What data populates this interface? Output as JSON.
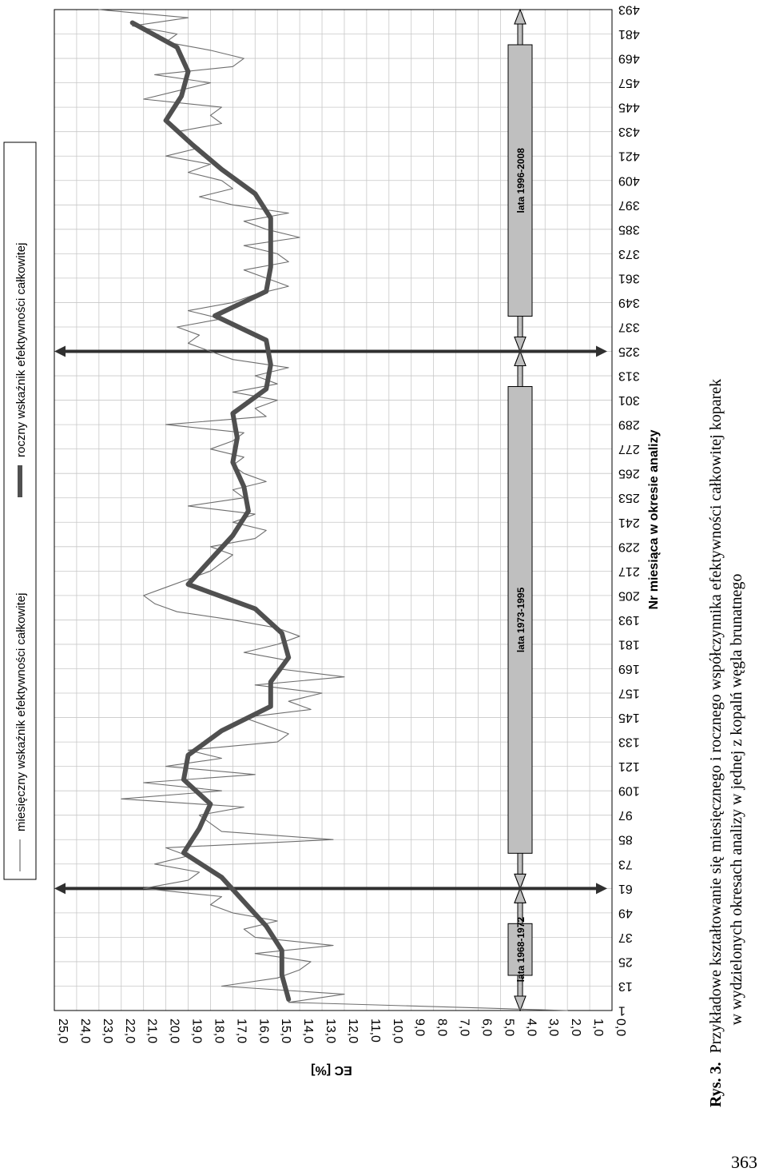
{
  "page_number": "363",
  "caption": {
    "prefix": "Rys. 3.",
    "line1": "Przykładowe kształtowanie się miesięcznego i rocznego współczynnika efektywności całkowitej koparek",
    "line2": "w wydzielonych okresach analizy w jednej z kopalń węgla brunatnego"
  },
  "colors": {
    "monthly": "#6e6e6e",
    "annual": "#505050",
    "period_box": "#bfbfbf",
    "grid": "#c8c8c8",
    "divider": "#303030"
  },
  "chart_data": {
    "type": "line",
    "orientation": "rotated-90-clockwise",
    "title": "",
    "xlabel": "Nr miesiąca w okresie analizy",
    "ylabel": "EC [%]",
    "xlim": [
      1,
      493
    ],
    "ylim": [
      0,
      25
    ],
    "grid": true,
    "legend_position": "top",
    "x_ticks": [
      "1",
      "13",
      "25",
      "37",
      "49",
      "61",
      "73",
      "85",
      "97",
      "109",
      "121",
      "133",
      "145",
      "157",
      "169",
      "181",
      "193",
      "205",
      "217",
      "229",
      "241",
      "253",
      "265",
      "277",
      "289",
      "301",
      "313",
      "325",
      "337",
      "349",
      "361",
      "373",
      "385",
      "397",
      "409",
      "421",
      "433",
      "445",
      "457",
      "469",
      "481",
      "493"
    ],
    "y_ticks": [
      "0,0",
      "1,0",
      "2,0",
      "3,0",
      "4,0",
      "5,0",
      "6,0",
      "7,0",
      "8,0",
      "9,0",
      "10,0",
      "11,0",
      "12,0",
      "13,0",
      "14,0",
      "15,0",
      "16,0",
      "17,0",
      "18,0",
      "19,0",
      "20,0",
      "21,0",
      "22,0",
      "23,0",
      "24,0",
      "25,0"
    ],
    "legend": [
      "miesięczny wskaźnik efektywności całkowitej",
      "roczny wskaźnik efektywności całkowitej"
    ],
    "series": [
      {
        "name": "miesięczny wskaźnik efektywności całkowitej",
        "style": "thin",
        "x": [
          1,
          5,
          9,
          13,
          17,
          21,
          25,
          29,
          33,
          37,
          41,
          45,
          49,
          53,
          57,
          61,
          65,
          69,
          73,
          77,
          81,
          85,
          89,
          93,
          97,
          101,
          105,
          109,
          113,
          117,
          121,
          125,
          129,
          133,
          137,
          141,
          145,
          149,
          153,
          157,
          161,
          165,
          169,
          173,
          177,
          181,
          185,
          189,
          193,
          197,
          201,
          205,
          209,
          213,
          217,
          221,
          225,
          229,
          233,
          237,
          241,
          245,
          249,
          253,
          257,
          261,
          265,
          269,
          273,
          277,
          281,
          285,
          289,
          293,
          297,
          301,
          305,
          309,
          313,
          317,
          321,
          325,
          329,
          333,
          337,
          341,
          345,
          349,
          353,
          357,
          361,
          365,
          369,
          373,
          377,
          381,
          385,
          389,
          393,
          397,
          401,
          405,
          409,
          413,
          417,
          421,
          425,
          429,
          433,
          437,
          441,
          445,
          449,
          453,
          457,
          461,
          465,
          469,
          473,
          477,
          481,
          485,
          489,
          493
        ],
        "values": [
          2.0,
          14.5,
          12.0,
          17.5,
          15.0,
          14.0,
          13.5,
          16.0,
          12.5,
          16.0,
          16.5,
          15.0,
          17.0,
          18.0,
          17.5,
          21.0,
          19.0,
          18.5,
          20.5,
          19.0,
          20.0,
          12.5,
          17.5,
          18.0,
          18.5,
          16.5,
          22.0,
          17.5,
          21.0,
          16.0,
          20.0,
          17.5,
          19.0,
          15.0,
          14.5,
          15.5,
          16.5,
          13.5,
          14.5,
          13.0,
          16.0,
          12.0,
          15.0,
          14.5,
          16.5,
          15.0,
          14.0,
          15.0,
          17.0,
          19.5,
          20.5,
          21.0,
          20.0,
          19.0,
          18.0,
          17.5,
          17.0,
          18.0,
          16.0,
          15.5,
          17.0,
          16.0,
          19.0,
          16.5,
          17.0,
          15.5,
          16.5,
          17.0,
          16.5,
          18.0,
          17.0,
          16.5,
          20.0,
          15.5,
          16.0,
          15.0,
          17.0,
          15.0,
          16.0,
          14.5,
          17.0,
          18.0,
          19.0,
          18.5,
          19.5,
          17.5,
          19.0,
          17.0,
          16.0,
          14.5,
          15.5,
          16.5,
          14.5,
          15.0,
          16.5,
          14.0,
          15.5,
          16.5,
          14.5,
          17.0,
          18.5,
          17.0,
          17.5,
          19.0,
          18.0,
          20.0,
          18.5,
          19.0,
          19.5,
          17.5,
          18.0,
          17.5,
          21.0,
          19.5,
          18.0,
          20.5,
          17.0,
          16.5,
          18.0,
          20.0,
          19.5,
          21.5,
          19.0,
          23.0
        ]
      },
      {
        "name": "roczny wskaźnik efektywności całkowitej",
        "style": "thick",
        "x": [
          6.5,
          18.5,
          30.5,
          42.5,
          54.5,
          66.5,
          78.5,
          90.5,
          102.5,
          114.5,
          126.5,
          138.5,
          150.5,
          162.5,
          174.5,
          186.5,
          198.5,
          210.5,
          222.5,
          234.5,
          246.5,
          258.5,
          270.5,
          282.5,
          294.5,
          306.5,
          318.5,
          330.5,
          342.5,
          354.5,
          366.5,
          378.5,
          390.5,
          402.5,
          414.5,
          426.5,
          438.5,
          450.5,
          462.5,
          474.5,
          486.5
        ],
        "values": [
          14.5,
          14.8,
          14.8,
          15.5,
          16.5,
          17.5,
          19.2,
          18.5,
          18.0,
          19.2,
          19.0,
          17.5,
          15.3,
          15.3,
          14.5,
          14.8,
          16.0,
          19.0,
          18.0,
          17.0,
          16.3,
          16.5,
          17.0,
          16.8,
          17.0,
          15.5,
          15.3,
          15.5,
          17.8,
          15.5,
          15.3,
          15.3,
          15.3,
          16.0,
          17.5,
          18.8,
          20.0,
          19.3,
          19.0,
          19.5,
          21.5
        ]
      }
    ],
    "annotations": {
      "period_labels": [
        "lata 1968-1972",
        "lata 1973-1995",
        "lata 1996-2008"
      ],
      "period_ranges": [
        [
          1,
          61
        ],
        [
          61,
          325
        ],
        [
          325,
          493
        ]
      ],
      "period_boundaries": [
        61,
        325
      ]
    }
  }
}
